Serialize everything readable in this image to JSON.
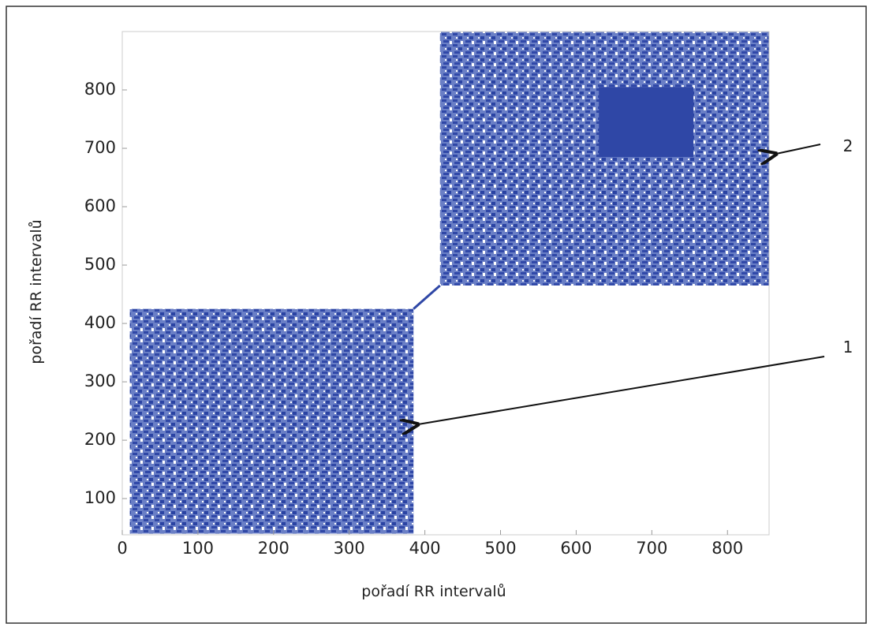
{
  "chart_data": {
    "type": "recurrence",
    "x_label": "pořadí RR intervalů",
    "y_label": "pořadí RR intervalů",
    "annotations": [
      "1",
      "2"
    ],
    "color": "#2f47a6",
    "xlim": [
      0,
      855
    ],
    "ylim": [
      38,
      900
    ],
    "xticks": [
      0,
      100,
      200,
      300,
      400,
      500,
      600,
      700,
      800
    ],
    "yticks": [
      100,
      200,
      300,
      400,
      500,
      600,
      700,
      800
    ],
    "regions": [
      {
        "x": [
          10,
          385
        ],
        "y": [
          40,
          425
        ]
      },
      {
        "x": [
          420,
          855
        ],
        "y": [
          465,
          900
        ]
      }
    ],
    "dense_regions": [
      {
        "x": [
          630,
          755
        ],
        "y": [
          685,
          805
        ]
      }
    ],
    "diagonal": {
      "x": [
        385,
        420
      ],
      "y": [
        425,
        465
      ]
    }
  }
}
